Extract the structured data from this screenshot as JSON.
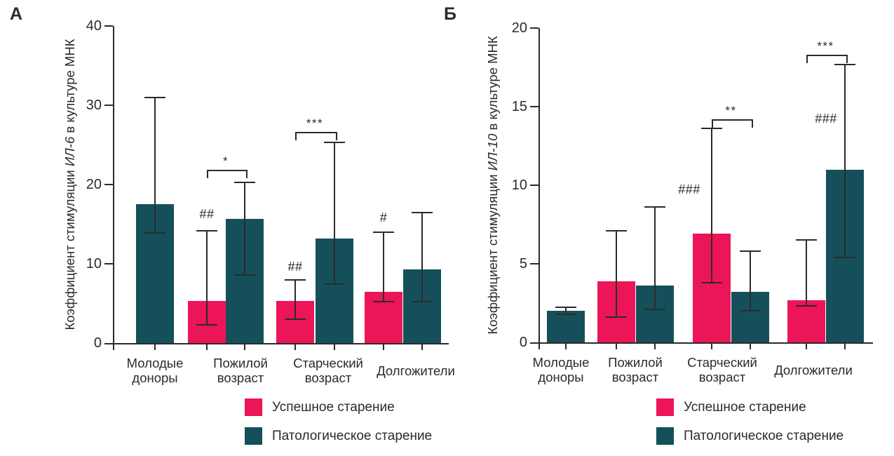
{
  "colors": {
    "success": "#ec1557",
    "pathological": "#15505a",
    "axis": "#2b2b2b"
  },
  "chart_data": [
    {
      "type": "bar",
      "panel_label": "А",
      "ylabel": {
        "prefix": "Коэффициент стимуляции ",
        "italic": "ИЛ-6",
        "suffix": " в культуре МНК"
      },
      "ylim": [
        0,
        40
      ],
      "yticks": [
        0,
        10,
        20,
        30,
        40
      ],
      "grid": false,
      "categories": [
        [
          "Молодые",
          "доноры"
        ],
        [
          "Пожилой",
          "возраст"
        ],
        [
          "Старческий",
          "возраст"
        ],
        [
          "Долгожители"
        ]
      ],
      "series": [
        {
          "name": "Успешное старение",
          "color": "#ec1557",
          "values": [
            null,
            5.3,
            5.3,
            6.5
          ],
          "err_low": [
            null,
            2.3,
            3.0,
            5.2
          ],
          "err_high": [
            null,
            14.2,
            8.0,
            14.0
          ]
        },
        {
          "name": "Патологическое старение",
          "color": "#15505a",
          "values": [
            17.5,
            15.7,
            13.2,
            9.3
          ],
          "err_low": [
            13.9,
            8.6,
            7.4,
            5.2
          ],
          "err_high": [
            31.0,
            20.3,
            25.3,
            16.5
          ]
        }
      ],
      "annotations": [
        {
          "text": "##",
          "category": 1,
          "series": 0,
          "y": 15.4,
          "dx": 0
        },
        {
          "text": "##",
          "category": 2,
          "series": 0,
          "y": 8.8,
          "dx": 0
        },
        {
          "text": "#",
          "category": 3,
          "series": 0,
          "y": 15.0,
          "dx": 0
        }
      ],
      "brackets": [
        {
          "label": "*",
          "category": 1,
          "from_series": 0,
          "to_series": 1,
          "y": 21.9
        },
        {
          "label": "***",
          "category": 2,
          "from_series": 0,
          "to_series": 1,
          "y": 26.6
        }
      ],
      "legend": [
        {
          "label": "Успешное старение",
          "color": "#ec1557"
        },
        {
          "label": "Патологическое старение",
          "color": "#15505a"
        }
      ]
    },
    {
      "type": "bar",
      "panel_label": "Б",
      "ylabel": {
        "prefix": "Коэффициент стимуляции ",
        "italic": "ИЛ-10",
        "suffix": " в культуре МНК"
      },
      "ylim": [
        0,
        20
      ],
      "yticks": [
        0,
        5,
        10,
        15,
        20
      ],
      "grid": false,
      "categories": [
        [
          "Молодые",
          "доноры"
        ],
        [
          "Пожилой",
          "возраст"
        ],
        [
          "Старческий",
          "возраст"
        ],
        [
          "Долгожители"
        ]
      ],
      "series": [
        {
          "name": "Успешное старение",
          "color": "#ec1557",
          "values": [
            null,
            3.9,
            6.9,
            2.7
          ],
          "err_low": [
            null,
            1.6,
            3.8,
            2.3
          ],
          "err_high": [
            null,
            7.1,
            13.6,
            6.5
          ]
        },
        {
          "name": "Патологическое старение",
          "color": "#15505a",
          "values": [
            2.0,
            3.6,
            3.2,
            11.0
          ],
          "err_low": [
            1.8,
            2.1,
            2.0,
            5.4
          ],
          "err_high": [
            2.25,
            8.6,
            5.8,
            17.7
          ]
        }
      ],
      "annotations": [
        {
          "text": "###",
          "category": 2,
          "series": 0,
          "y": 9.3,
          "dx": -32
        },
        {
          "text": "###",
          "category": 3,
          "series": 1,
          "y": 13.8,
          "dx": -27
        }
      ],
      "brackets": [
        {
          "label": "**",
          "category": 2,
          "from_series": 0,
          "to_series": 1,
          "y": 14.2
        },
        {
          "label": "***",
          "category": 3,
          "from_series": 0,
          "to_series": 1,
          "y": 18.3
        }
      ],
      "legend": [
        {
          "label": "Успешное старение",
          "color": "#ec1557"
        },
        {
          "label": "Патологическое старение",
          "color": "#15505a"
        }
      ]
    }
  ]
}
